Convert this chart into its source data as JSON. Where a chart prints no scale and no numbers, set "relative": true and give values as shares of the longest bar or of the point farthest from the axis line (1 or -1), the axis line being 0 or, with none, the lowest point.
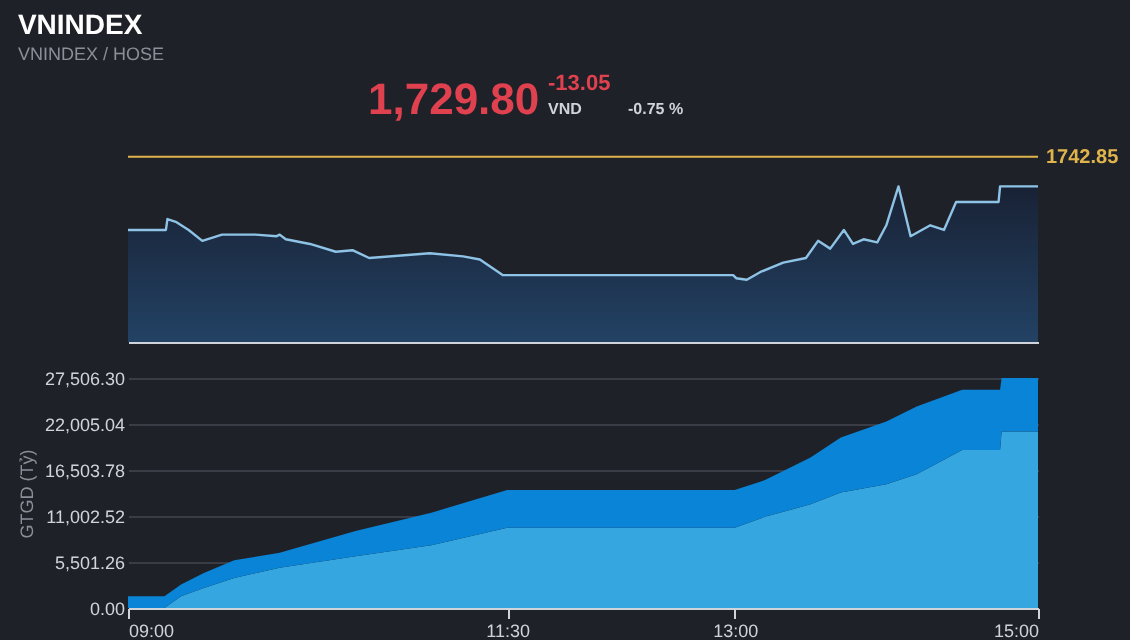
{
  "chart_data": [
    {
      "type": "area",
      "title": "VNINDEX",
      "subtitle": "VNINDEX / HOSE",
      "relative": true,
      "color": "#8ec3e6",
      "xlim": [
        9,
        15
      ],
      "annotations": [
        "1,729.80",
        "-13.05",
        "VND",
        "-0.75 %",
        "1742.85"
      ],
      "ref_lines": [
        {
          "axis": "y",
          "value": 1.19,
          "color": "#e0b44c"
        }
      ],
      "x": [
        9.0,
        9.25,
        9.26,
        9.32,
        9.4,
        9.49,
        9.62,
        9.84,
        9.98,
        10.0,
        10.04,
        10.2,
        10.37,
        10.48,
        10.59,
        10.99,
        11.21,
        11.32,
        11.47,
        12.99,
        13.01,
        13.08,
        13.17,
        13.32,
        13.47,
        13.55,
        13.63,
        13.72,
        13.78,
        13.85,
        13.94,
        14.0,
        14.08,
        14.16,
        14.29,
        14.38,
        14.46,
        14.74,
        14.75,
        15.0
      ],
      "values": [
        0.72,
        0.72,
        0.79,
        0.77,
        0.72,
        0.65,
        0.69,
        0.69,
        0.68,
        0.69,
        0.66,
        0.63,
        0.58,
        0.59,
        0.54,
        0.57,
        0.55,
        0.53,
        0.43,
        0.43,
        0.41,
        0.4,
        0.45,
        0.51,
        0.54,
        0.65,
        0.6,
        0.72,
        0.63,
        0.66,
        0.64,
        0.75,
        1.0,
        0.68,
        0.75,
        0.72,
        0.9,
        0.9,
        1.0,
        1.0
      ]
    },
    {
      "type": "area",
      "stacked": true,
      "ylabel": "GTGD (Tỷ)",
      "grid": "y",
      "xlim": [
        9,
        15
      ],
      "xticks": [
        {
          "value": 9,
          "label": "09:00"
        },
        {
          "value": 11.5,
          "label": "11:30"
        },
        {
          "value": 13,
          "label": "13:00"
        },
        {
          "value": 15,
          "label": "15:00"
        }
      ],
      "ylim": [
        0,
        27506.3
      ],
      "yticks": [
        {
          "value": 0,
          "label": "0.00"
        },
        {
          "value": 5501.26,
          "label": "5,501.26"
        },
        {
          "value": 11002.52,
          "label": "11,002.52"
        },
        {
          "value": 16503.78,
          "label": "16,503.78"
        },
        {
          "value": 22005.04,
          "label": "22,005.04"
        },
        {
          "value": 27506.3,
          "label": "27,506.30"
        }
      ],
      "x": [
        9.0,
        9.24,
        9.35,
        9.5,
        9.7,
        10.0,
        10.5,
        11.0,
        11.5,
        13.0,
        13.2,
        13.5,
        13.7,
        14.0,
        14.2,
        14.5,
        14.75,
        14.76,
        15.0
      ],
      "series": [
        {
          "color": "#35a6df",
          "values": [
            0,
            0,
            1400,
            2400,
            3600,
            4800,
            6200,
            7500,
            9600,
            9600,
            10900,
            12400,
            13800,
            14800,
            16000,
            18900,
            18900,
            21100,
            21100
          ]
        },
        {
          "color": "#0a84d6",
          "values": [
            1400,
            1400,
            1400,
            1800,
            2100,
            1800,
            3000,
            3900,
            4500,
            4500,
            4400,
            5600,
            6600,
            7500,
            8100,
            7200,
            7200,
            6400,
            6400
          ]
        }
      ]
    }
  ]
}
